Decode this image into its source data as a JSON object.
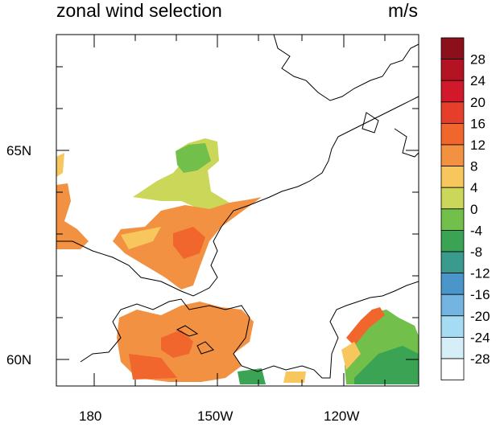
{
  "title": "zonal wind selection",
  "units": "m/s",
  "lat_labels": [
    "65N",
    "60N"
  ],
  "lon_labels": [
    "180",
    "150W",
    "120W"
  ],
  "colorbar": {
    "labels": [
      "28",
      "24",
      "20",
      "16",
      "12",
      "8",
      "4",
      "0",
      "-4",
      "-8",
      "-12",
      "-16",
      "-20",
      "-24",
      "-28"
    ],
    "colors": [
      "#8c0f1c",
      "#b31322",
      "#d2192c",
      "#e53f2b",
      "#f0662d",
      "#f39142",
      "#f7c75d",
      "#cbd759",
      "#72bf4b",
      "#3aa454",
      "#3a9a8e",
      "#4a96cb",
      "#74b4e0",
      "#a6dcf3",
      "#d6eef8",
      "#ffffff"
    ]
  }
}
